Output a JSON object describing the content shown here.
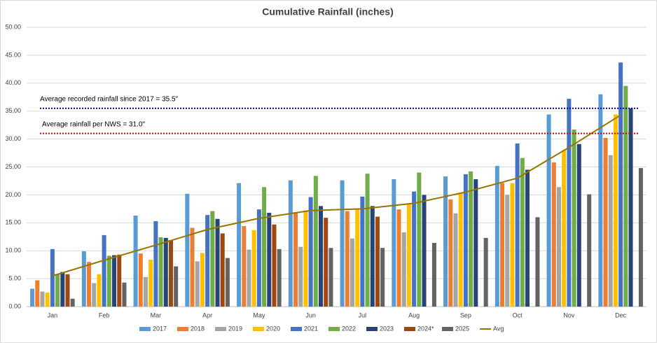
{
  "chart_data": {
    "type": "bar",
    "title": "Cumulative Rainfall (inches)",
    "categories": [
      "Jan",
      "Feb",
      "Mar",
      "Apr",
      "May",
      "Jun",
      "Jul",
      "Aug",
      "Sep",
      "Oct",
      "Nov",
      "Dec"
    ],
    "ylim": [
      0,
      50
    ],
    "yticks": [
      {
        "value": 0,
        "label": "0.00"
      },
      {
        "value": 5,
        "label": "5.00"
      },
      {
        "value": 10,
        "label": "10.00"
      },
      {
        "value": 15,
        "label": "15.00"
      },
      {
        "value": 20,
        "label": "20.00"
      },
      {
        "value": 25,
        "label": "25.00"
      },
      {
        "value": 30,
        "label": "30.00"
      },
      {
        "value": 35,
        "label": "35.00"
      },
      {
        "value": 40,
        "label": "40.00"
      },
      {
        "value": 45,
        "label": "45.00"
      },
      {
        "value": 50,
        "label": "50.00"
      }
    ],
    "grid": true,
    "legend": "bottom",
    "series": [
      {
        "name": "2017",
        "color": "#5b9bd5",
        "values": [
          3.2,
          9.9,
          16.3,
          20.2,
          22.1,
          22.6,
          22.6,
          22.8,
          23.3,
          25.2,
          34.4,
          38.0
        ]
      },
      {
        "name": "2018",
        "color": "#ed7d31",
        "values": [
          4.7,
          8.0,
          9.5,
          14.1,
          14.4,
          16.9,
          17.1,
          17.4,
          19.2,
          22.1,
          25.8,
          30.2
        ]
      },
      {
        "name": "2019",
        "color": "#a5a5a5",
        "values": [
          2.7,
          4.2,
          5.3,
          8.1,
          10.2,
          10.7,
          12.2,
          13.3,
          16.7,
          20.0,
          21.4,
          27.1
        ]
      },
      {
        "name": "2020",
        "color": "#ffc000",
        "values": [
          2.5,
          5.8,
          8.4,
          9.6,
          13.7,
          17.2,
          17.4,
          18.4,
          20.4,
          22.1,
          28.0,
          34.4
        ]
      },
      {
        "name": "2021",
        "color": "#4472c4",
        "values": [
          10.3,
          12.8,
          15.3,
          16.4,
          17.4,
          19.6,
          19.7,
          20.6,
          23.7,
          29.2,
          37.2,
          43.7
        ]
      },
      {
        "name": "2022",
        "color": "#70ad47",
        "values": [
          5.8,
          9.1,
          12.4,
          17.1,
          21.4,
          23.4,
          23.8,
          24.0,
          24.2,
          26.6,
          31.7,
          39.5
        ]
      },
      {
        "name": "2023",
        "color": "#264478",
        "values": [
          6.2,
          9.2,
          12.3,
          15.7,
          16.8,
          18.0,
          18.0,
          20.0,
          22.8,
          24.5,
          29.1,
          35.5
        ]
      },
      {
        "name": "2024*",
        "color": "#9e480e",
        "values": [
          5.8,
          9.3,
          11.9,
          13.1,
          14.7,
          15.9,
          16.1,
          null,
          null,
          null,
          null,
          null
        ]
      },
      {
        "name": "2025",
        "color": "#636363",
        "values": [
          1.4,
          4.3,
          7.2,
          8.7,
          10.3,
          10.5,
          10.5,
          11.4,
          12.3,
          16.0,
          20.1,
          24.8
        ]
      },
      {
        "name": "Avg",
        "color": "#997300",
        "type": "line",
        "values": [
          5.5,
          8.3,
          11.0,
          13.8,
          15.8,
          17.2,
          17.5,
          18.5,
          20.5,
          23.0,
          28.5,
          34.3
        ]
      }
    ],
    "reference_lines": [
      {
        "label": "Average recorded rainfall since 2017 = 35.5\"",
        "value": 35.5,
        "color": "#0000cc"
      },
      {
        "label": "Average rainfall per NWS = 31.0\"",
        "value": 31.0,
        "color": "#e00000"
      }
    ]
  }
}
